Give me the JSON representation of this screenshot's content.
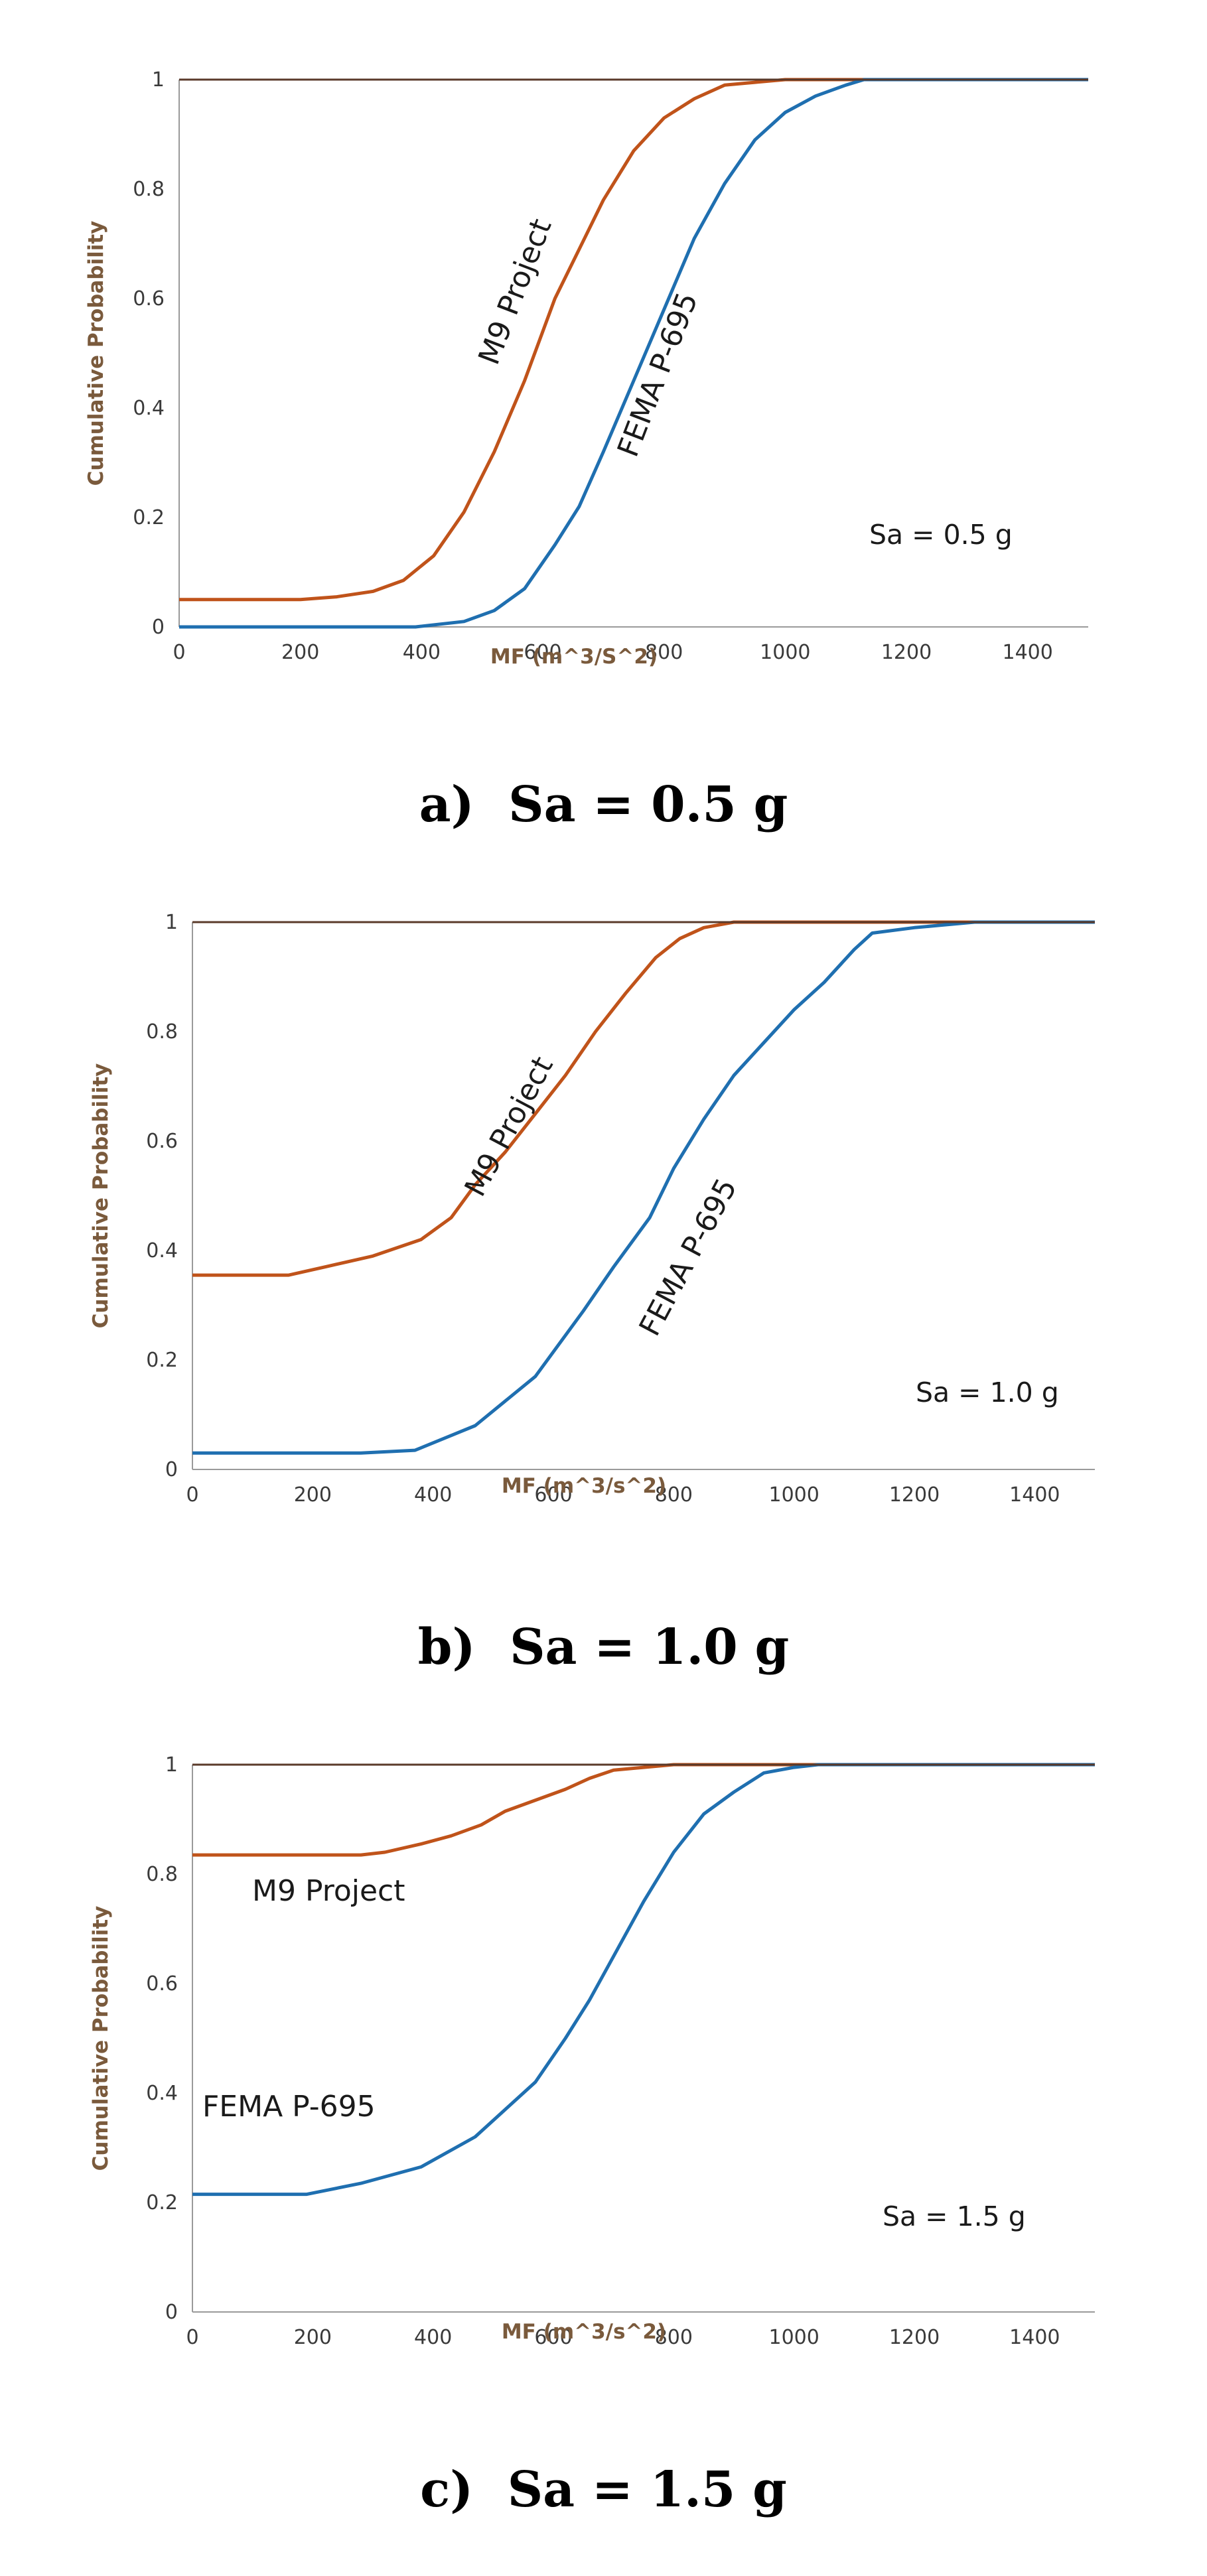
{
  "chart_data": [
    {
      "type": "line",
      "id": "a",
      "xlim": [
        0,
        1500
      ],
      "ylim": [
        0,
        1
      ],
      "xticks": [
        "0",
        "200",
        "400",
        "600",
        "800",
        "1000",
        "1200",
        "1400"
      ],
      "yticks": [
        "0",
        "0.2",
        "0.4",
        "0.6",
        "0.8",
        "1"
      ],
      "xlabel": "MF (m^3/S^2)",
      "ylabel": "Cumulative Probability",
      "annotation": "Sa = 0.5 g",
      "caption_letter": "a)",
      "caption_text": "Sa = 0.5 g",
      "colors": {
        "m9": "#c0531a",
        "fema": "#1f6fb0"
      },
      "series": [
        {
          "name": "M9 Project",
          "key": "m9",
          "x": [
            0,
            200,
            260,
            320,
            370,
            420,
            470,
            520,
            570,
            620,
            660,
            700,
            750,
            800,
            850,
            900,
            950,
            1000,
            1020,
            1500
          ],
          "y": [
            0.05,
            0.05,
            0.055,
            0.065,
            0.085,
            0.13,
            0.21,
            0.32,
            0.45,
            0.6,
            0.69,
            0.78,
            0.87,
            0.93,
            0.965,
            0.99,
            0.995,
            1.0,
            1.0,
            1.0
          ]
        },
        {
          "name": "FEMA P-695",
          "key": "fema",
          "x": [
            0,
            390,
            470,
            520,
            570,
            620,
            660,
            700,
            750,
            800,
            850,
            900,
            950,
            1000,
            1050,
            1100,
            1130,
            1500
          ],
          "y": [
            0,
            0,
            0.01,
            0.03,
            0.07,
            0.15,
            0.22,
            0.32,
            0.45,
            0.58,
            0.71,
            0.81,
            0.89,
            0.94,
            0.97,
            0.99,
            1.0,
            1.0
          ]
        }
      ]
    },
    {
      "type": "line",
      "id": "b",
      "xlim": [
        0,
        1500
      ],
      "ylim": [
        0,
        1
      ],
      "xticks": [
        "0",
        "200",
        "400",
        "600",
        "800",
        "1000",
        "1200",
        "1400"
      ],
      "yticks": [
        "0",
        "0.2",
        "0.4",
        "0.6",
        "0.8",
        "1"
      ],
      "xlabel": "MF (m^3/s^2)",
      "ylabel": "Cumulative Probability",
      "annotation": "Sa = 1.0 g",
      "caption_letter": "b)",
      "caption_text": "Sa = 1.0 g",
      "colors": {
        "m9": "#c0531a",
        "fema": "#1f6fb0"
      },
      "series": [
        {
          "name": "M9 Project",
          "key": "m9",
          "x": [
            0,
            160,
            220,
            300,
            380,
            430,
            470,
            520,
            570,
            620,
            670,
            720,
            770,
            810,
            850,
            900,
            1500
          ],
          "y": [
            0.355,
            0.355,
            0.37,
            0.39,
            0.42,
            0.46,
            0.52,
            0.58,
            0.65,
            0.72,
            0.8,
            0.87,
            0.935,
            0.97,
            0.99,
            1.0,
            1.0
          ]
        },
        {
          "name": "FEMA P-695",
          "key": "fema",
          "x": [
            0,
            280,
            370,
            470,
            570,
            650,
            700,
            760,
            800,
            850,
            900,
            950,
            1000,
            1050,
            1100,
            1130,
            1200,
            1300,
            1500
          ],
          "y": [
            0.03,
            0.03,
            0.035,
            0.08,
            0.17,
            0.29,
            0.37,
            0.46,
            0.55,
            0.64,
            0.72,
            0.78,
            0.84,
            0.89,
            0.95,
            0.98,
            0.99,
            1.0,
            1.0
          ]
        }
      ]
    },
    {
      "type": "line",
      "id": "c",
      "xlim": [
        0,
        1500
      ],
      "ylim": [
        0,
        1
      ],
      "xticks": [
        "0",
        "200",
        "400",
        "600",
        "800",
        "1000",
        "1200",
        "1400"
      ],
      "yticks": [
        "0",
        "0.2",
        "0.4",
        "0.6",
        "0.8",
        "1"
      ],
      "xlabel": "MF (m^3/s^2)",
      "ylabel": "Cumulative Probability",
      "annotation": "Sa = 1.5 g",
      "caption_letter": "c)",
      "caption_text": "Sa = 1.5 g",
      "colors": {
        "m9": "#c0531a",
        "fema": "#1f6fb0"
      },
      "series": [
        {
          "name": "M9 Project",
          "key": "m9",
          "x": [
            0,
            280,
            320,
            380,
            430,
            480,
            520,
            570,
            620,
            660,
            700,
            750,
            800,
            850,
            1500
          ],
          "y": [
            0.835,
            0.835,
            0.84,
            0.855,
            0.87,
            0.89,
            0.915,
            0.935,
            0.955,
            0.975,
            0.99,
            0.995,
            1.0,
            1.0,
            1.0
          ]
        },
        {
          "name": "FEMA P-695",
          "key": "fema",
          "x": [
            0,
            190,
            280,
            380,
            470,
            570,
            620,
            660,
            700,
            750,
            800,
            850,
            900,
            950,
            1000,
            1040,
            1500
          ],
          "y": [
            0.215,
            0.215,
            0.235,
            0.265,
            0.32,
            0.42,
            0.5,
            0.57,
            0.65,
            0.75,
            0.84,
            0.91,
            0.95,
            0.985,
            0.995,
            1.0,
            1.0
          ]
        }
      ]
    }
  ]
}
